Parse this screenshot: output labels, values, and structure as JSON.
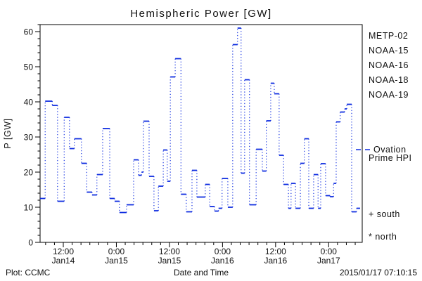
{
  "title": "Hemispheric Power [GW]",
  "y_axis": {
    "label": "P [GW]",
    "ticks": [
      0,
      10,
      20,
      30,
      40,
      50,
      60
    ],
    "min": 0,
    "max": 62,
    "minor_step": 2
  },
  "x_axis": {
    "label": "Date and Time",
    "major_ticks": [
      {
        "time": "12:00",
        "date": "Jan14",
        "hour": 12
      },
      {
        "time": "0:00",
        "date": "Jan15",
        "hour": 24
      },
      {
        "time": "12:00",
        "date": "Jan15",
        "hour": 36
      },
      {
        "time": "0:00",
        "date": "Jan16",
        "hour": 48
      },
      {
        "time": "12:00",
        "date": "Jan16",
        "hour": 60
      },
      {
        "time": "0:00",
        "date": "Jan17",
        "hour": 72
      }
    ],
    "start_hour": 6.75,
    "end_hour": 79.6,
    "minor_step_hours": 2
  },
  "legend": {
    "satellites": [
      {
        "label": "METP-02",
        "color": "#111111"
      },
      {
        "label": "NOAA-15",
        "color": "#0f2de0"
      },
      {
        "label": "NOAA-16",
        "color": "#35c2ff"
      },
      {
        "label": "NOAA-18",
        "color": "#67e683"
      },
      {
        "label": "NOAA-19",
        "color": "#ff9d30"
      }
    ],
    "ovation": {
      "label_line1": "Ovation",
      "label_line2": "Prime HPI",
      "color": "#0f2de0"
    },
    "south_marker": "+ south",
    "north_marker": "* north"
  },
  "footer": {
    "left": "Plot: CCMC",
    "right": "2015/01/17 07:10:15"
  },
  "chart_data": {
    "type": "line",
    "subtype": "step",
    "series_name": "Ovation Prime HPI",
    "x_unit": "hours since 2015-01-14 00:00 UT",
    "y_unit": "GW",
    "ylim": [
      0,
      62
    ],
    "line_color": "#0f2de0",
    "grid": false,
    "legend_position": "right",
    "points": [
      [
        6.75,
        12.5
      ],
      [
        7.9,
        40.2
      ],
      [
        9.5,
        39.0
      ],
      [
        10.7,
        11.7
      ],
      [
        12.2,
        35.6
      ],
      [
        13.4,
        26.7
      ],
      [
        14.5,
        29.5
      ],
      [
        16.1,
        22.5
      ],
      [
        17.3,
        14.3
      ],
      [
        18.5,
        13.5
      ],
      [
        19.6,
        19.3
      ],
      [
        20.9,
        32.4
      ],
      [
        22.5,
        12.5
      ],
      [
        23.6,
        11.7
      ],
      [
        24.7,
        8.5
      ],
      [
        26.3,
        10.7
      ],
      [
        27.9,
        23.5
      ],
      [
        29.0,
        19.1
      ],
      [
        29.7,
        20.0
      ],
      [
        30.1,
        34.5
      ],
      [
        31.4,
        18.8
      ],
      [
        32.5,
        9.0
      ],
      [
        33.5,
        16.0
      ],
      [
        34.6,
        26.3
      ],
      [
        35.5,
        17.4
      ],
      [
        36.2,
        47.1
      ],
      [
        37.3,
        52.3
      ],
      [
        38.6,
        13.7
      ],
      [
        39.8,
        8.7
      ],
      [
        41.1,
        20.5
      ],
      [
        42.2,
        12.9
      ],
      [
        44.1,
        16.5
      ],
      [
        45.1,
        10.2
      ],
      [
        46.2,
        8.9
      ],
      [
        47.1,
        9.7
      ],
      [
        47.9,
        18.2
      ],
      [
        49.2,
        10.0
      ],
      [
        50.3,
        56.3
      ],
      [
        51.4,
        61.0
      ],
      [
        52.2,
        19.7
      ],
      [
        53.0,
        46.3
      ],
      [
        54.1,
        10.7
      ],
      [
        55.6,
        26.5
      ],
      [
        57.0,
        20.3
      ],
      [
        57.9,
        34.6
      ],
      [
        58.9,
        45.3
      ],
      [
        59.7,
        42.3
      ],
      [
        60.8,
        24.8
      ],
      [
        61.8,
        16.5
      ],
      [
        62.9,
        9.7
      ],
      [
        63.5,
        16.8
      ],
      [
        64.5,
        9.7
      ],
      [
        65.6,
        22.5
      ],
      [
        66.5,
        29.5
      ],
      [
        67.5,
        9.7
      ],
      [
        68.6,
        19.3
      ],
      [
        69.6,
        9.7
      ],
      [
        70.2,
        22.4
      ],
      [
        71.3,
        13.3
      ],
      [
        72.3,
        13.0
      ],
      [
        73.1,
        16.8
      ],
      [
        73.7,
        34.3
      ],
      [
        74.6,
        37.1
      ],
      [
        75.6,
        38.0
      ],
      [
        76.1,
        39.3
      ],
      [
        77.2,
        8.7
      ],
      [
        78.3,
        9.7
      ]
    ],
    "end_hour": 79.1
  }
}
